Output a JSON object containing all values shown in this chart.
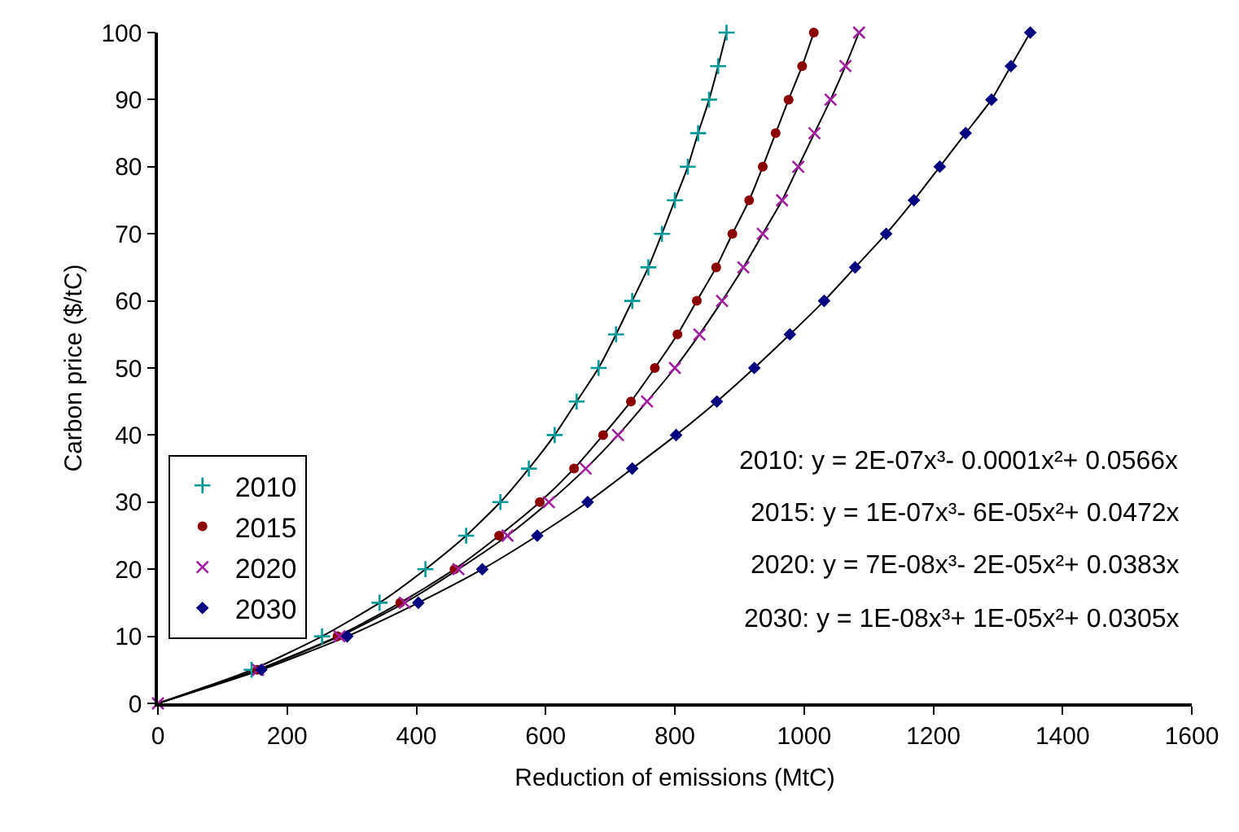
{
  "chart_data": {
    "type": "scatter",
    "xlabel": "Reduction of emissions (MtC)",
    "ylabel": "Carbon price ($/tC)",
    "xlim": [
      0,
      1600
    ],
    "xticks": [
      0,
      200,
      400,
      600,
      800,
      1000,
      1200,
      1400,
      1600
    ],
    "ylim": [
      0,
      100
    ],
    "yticks": [
      0,
      10,
      20,
      30,
      40,
      50,
      60,
      70,
      80,
      90,
      100
    ],
    "legend": "left",
    "series": [
      {
        "name": "2010",
        "color": "#009999",
        "marker": "cross",
        "x": [
          145,
          254,
          343,
          414,
          477,
          530,
          574,
          614,
          648,
          682,
          709,
          734,
          759,
          780,
          800,
          820,
          836,
          853,
          867,
          880
        ],
        "values": [
          5,
          10,
          15,
          20,
          25,
          30,
          35,
          40,
          45,
          50,
          55,
          60,
          65,
          70,
          75,
          80,
          85,
          90,
          95,
          100
        ]
      },
      {
        "name": "2015",
        "color": "#8b0000",
        "marker": "circle",
        "x": [
          154,
          278,
          375,
          459,
          528,
          591,
          644,
          689,
          732,
          769,
          804,
          834,
          864,
          889,
          915,
          936,
          956,
          976,
          997,
          1015
        ],
        "values": [
          5,
          10,
          15,
          20,
          25,
          30,
          35,
          40,
          45,
          50,
          55,
          60,
          65,
          70,
          75,
          80,
          85,
          90,
          95,
          100
        ]
      },
      {
        "name": "2020",
        "color": "#a020a0",
        "marker": "x",
        "x": [
          0,
          155,
          281,
          382,
          465,
          541,
          605,
          662,
          712,
          757,
          800,
          838,
          873,
          906,
          936,
          966,
          991,
          1016,
          1041,
          1064,
          1085
        ],
        "values": [
          0,
          5,
          10,
          15,
          20,
          25,
          30,
          35,
          40,
          45,
          50,
          55,
          60,
          65,
          70,
          75,
          80,
          85,
          90,
          95,
          100
        ]
      },
      {
        "name": "2030",
        "color": "#000080",
        "marker": "diamond",
        "x": [
          160,
          293,
          403,
          502,
          587,
          665,
          734,
          802,
          865,
          923,
          978,
          1031,
          1079,
          1127,
          1170,
          1210,
          1250,
          1290,
          1320,
          1350
        ],
        "values": [
          5,
          10,
          15,
          20,
          25,
          30,
          35,
          40,
          45,
          50,
          55,
          60,
          65,
          70,
          75,
          80,
          85,
          90,
          95,
          100
        ]
      },
      {
        "type": "line",
        "color": "#000000",
        "line_style": "solid",
        "x": [
          0,
          145,
          254,
          343,
          414,
          477,
          530,
          574,
          614,
          648,
          682,
          709,
          734,
          759,
          780,
          800,
          820,
          836,
          853,
          867,
          880
        ],
        "values": [
          0,
          5,
          10,
          15,
          20,
          25,
          30,
          35,
          40,
          45,
          50,
          55,
          60,
          65,
          70,
          75,
          80,
          85,
          90,
          95,
          100
        ]
      },
      {
        "type": "line",
        "color": "#000000",
        "line_style": "solid",
        "x": [
          0,
          154,
          278,
          375,
          459,
          528,
          591,
          644,
          689,
          732,
          769,
          804,
          834,
          864,
          889,
          915,
          936,
          956,
          976,
          997,
          1015
        ],
        "values": [
          0,
          5,
          10,
          15,
          20,
          25,
          30,
          35,
          40,
          45,
          50,
          55,
          60,
          65,
          70,
          75,
          80,
          85,
          90,
          95,
          100
        ]
      },
      {
        "type": "line",
        "color": "#000000",
        "line_style": "solid",
        "x": [
          0,
          155,
          281,
          382,
          465,
          541,
          605,
          662,
          712,
          757,
          800,
          838,
          873,
          906,
          936,
          966,
          991,
          1016,
          1041,
          1064,
          1085
        ],
        "values": [
          0,
          5,
          10,
          15,
          20,
          25,
          30,
          35,
          40,
          45,
          50,
          55,
          60,
          65,
          70,
          75,
          80,
          85,
          90,
          95,
          100
        ]
      },
      {
        "type": "line",
        "color": "#000000",
        "line_style": "solid",
        "x": [
          0,
          160,
          293,
          403,
          502,
          587,
          665,
          734,
          802,
          865,
          923,
          978,
          1031,
          1079,
          1127,
          1170,
          1210,
          1250,
          1290,
          1320,
          1350
        ],
        "values": [
          0,
          5,
          10,
          15,
          20,
          25,
          30,
          35,
          40,
          45,
          50,
          55,
          60,
          65,
          70,
          75,
          80,
          85,
          90,
          95,
          100
        ]
      }
    ],
    "annotations": [
      "2010: y = 2E-07x³- 0.0001x²+ 0.0566x",
      "2015: y = 1E-07x³- 6E-05x²+ 0.0472x",
      "2020: y = 7E-08x³- 2E-05x²+ 0.0383x",
      "2030: y = 1E-08x³+ 1E-05x²+ 0.0305x"
    ]
  }
}
